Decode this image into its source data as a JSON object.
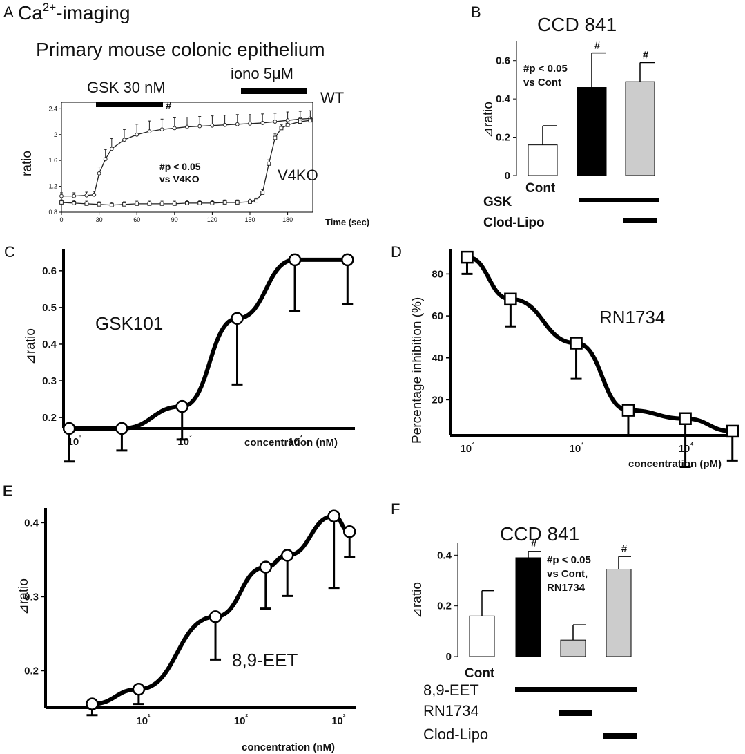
{
  "figure": {
    "panel_labels": [
      "A",
      "B",
      "C",
      "D",
      "E",
      "F"
    ]
  },
  "panelA": {
    "heading1_pre": "Ca",
    "heading1_sup": "2+",
    "heading1_post": "-imaging",
    "heading2": "Primary mouse colonic epithelium",
    "bar1_label": "GSK 30 nM",
    "bar2_label": "iono 5μM",
    "hash": "#",
    "wt_label": "WT",
    "ko_label": "V4KO",
    "stat_line1": "#p < 0.05",
    "stat_line2": "vs V4KO"
  },
  "panelB": {
    "title": "CCD 841",
    "stat_line1": "#p < 0.05",
    "stat_line2": "vs Cont",
    "cont_label": "Cont",
    "row_labels": [
      "GSK",
      "Clod-Lipo"
    ]
  },
  "panelC": {
    "label": "GSK101"
  },
  "panelD": {
    "label": "RN1734"
  },
  "panelE": {
    "label": "8,9-EET"
  },
  "panelF": {
    "title": "CCD 841",
    "stat_line1": "#p < 0.05",
    "stat_line2": "vs Cont,",
    "stat_line3": "RN1734",
    "cont_label": "Cont",
    "row_labels": [
      "8,9-EET",
      "RN1734",
      "Clod-Lipo"
    ]
  },
  "chart_data": [
    {
      "id": "A",
      "type": "line",
      "xlabel": "Time (sec)",
      "ylabel": "ratio",
      "xlim": [
        0,
        200
      ],
      "ylim": [
        0.8,
        2.5
      ],
      "xticks": [
        0,
        30,
        60,
        90,
        120,
        150,
        180
      ],
      "yticks": [
        0.8,
        1.2,
        1.6,
        2.0,
        2.4
      ],
      "ytick_labels": [
        "0.8",
        "1.2",
        "1.6",
        "2",
        "2.4"
      ],
      "series": [
        {
          "name": "WT",
          "marker": "circle",
          "x": [
            0,
            10,
            20,
            26,
            30,
            35,
            40,
            50,
            60,
            70,
            80,
            90,
            100,
            110,
            120,
            130,
            140,
            150,
            160,
            170,
            180,
            190,
            198
          ],
          "y": [
            1.05,
            1.05,
            1.06,
            1.07,
            1.4,
            1.62,
            1.78,
            1.92,
            2.0,
            2.05,
            2.08,
            2.1,
            2.12,
            2.13,
            2.14,
            2.15,
            2.16,
            2.17,
            2.18,
            2.2,
            2.22,
            2.24,
            2.25
          ],
          "err": [
            0.05,
            0.05,
            0.05,
            0.05,
            0.1,
            0.15,
            0.16,
            0.16,
            0.16,
            0.16,
            0.16,
            0.16,
            0.15,
            0.15,
            0.15,
            0.15,
            0.15,
            0.14,
            0.14,
            0.13,
            0.13,
            0.12,
            0.12
          ]
        },
        {
          "name": "V4KO",
          "marker": "square",
          "x": [
            0,
            10,
            20,
            30,
            40,
            50,
            60,
            70,
            80,
            90,
            100,
            110,
            120,
            130,
            140,
            150,
            155,
            160,
            165,
            170,
            175,
            180,
            190,
            198
          ],
          "y": [
            0.95,
            0.94,
            0.93,
            0.92,
            0.91,
            0.92,
            0.93,
            0.93,
            0.93,
            0.93,
            0.94,
            0.94,
            0.94,
            0.95,
            0.95,
            0.96,
            0.98,
            1.1,
            1.55,
            1.95,
            2.1,
            2.15,
            2.2,
            2.22
          ],
          "err": [
            0.04,
            0.04,
            0.04,
            0.04,
            0.04,
            0.04,
            0.04,
            0.04,
            0.04,
            0.04,
            0.04,
            0.04,
            0.04,
            0.04,
            0.04,
            0.04,
            0.04,
            0.05,
            0.06,
            0.06,
            0.05,
            0.05,
            0.05,
            0.05
          ]
        }
      ]
    },
    {
      "id": "B",
      "type": "bar",
      "ylabel": "⊿ratio",
      "ylim": [
        0,
        0.7
      ],
      "yticks": [
        0,
        0.2,
        0.4,
        0.6
      ],
      "ytick_labels": [
        "0",
        "0.2",
        "0.4",
        "0.6"
      ],
      "categories": [
        "Cont",
        "GSK",
        "GSK + Clod-Lipo"
      ],
      "values": [
        0.16,
        0.46,
        0.49
      ],
      "errors": [
        0.1,
        0.18,
        0.1
      ],
      "colors": [
        "#ffffff",
        "#000000",
        "#cccccc"
      ],
      "significance": [
        "",
        "#",
        "#"
      ]
    },
    {
      "id": "C",
      "type": "scatter",
      "xlabel": "concentration (nM)",
      "ylabel": "⊿ratio",
      "xscale": "log",
      "xlim": [
        8,
        3500
      ],
      "ylim": [
        0.17,
        0.66
      ],
      "xticks": [
        10,
        100,
        1000
      ],
      "xtick_labels": [
        "10¹",
        "10²",
        "10³"
      ],
      "yticks": [
        0.2,
        0.3,
        0.4,
        0.5,
        0.6
      ],
      "ytick_labels": [
        "0.2",
        "0.3",
        "0.4",
        "0.5",
        "0.6"
      ],
      "x": [
        9,
        27,
        95,
        300,
        1000,
        3000
      ],
      "y": [
        0.17,
        0.17,
        0.23,
        0.47,
        0.63,
        0.63
      ],
      "err": [
        0.09,
        0.06,
        0.09,
        0.18,
        0.14,
        0.12
      ],
      "fit_curve": "sigmoid"
    },
    {
      "id": "D",
      "type": "scatter",
      "xlabel": "concentration (pM)",
      "ylabel": "Percentage inhibition (%)",
      "xscale": "log",
      "xlim": [
        70,
        30000
      ],
      "ylim": [
        3,
        92
      ],
      "xticks": [
        100,
        1000,
        10000
      ],
      "xtick_labels": [
        "10²",
        "10³",
        "10⁴"
      ],
      "yticks": [
        20,
        40,
        60,
        80
      ],
      "ytick_labels": [
        "20",
        "40",
        "60",
        "80"
      ],
      "x": [
        100,
        250,
        1000,
        3000,
        10000,
        27000
      ],
      "y": [
        88,
        68,
        47,
        15,
        11,
        5
      ],
      "err": [
        8,
        13,
        17,
        12,
        23,
        14
      ],
      "fit_curve": "sigmoid"
    },
    {
      "id": "E",
      "type": "scatter",
      "xlabel": "concentration (nM)",
      "ylabel": "⊿ratio",
      "xscale": "log",
      "xlim": [
        1,
        1500
      ],
      "ylim": [
        0.15,
        0.42
      ],
      "xticks": [
        10,
        100,
        1000
      ],
      "xtick_labels": [
        "10¹",
        "10²",
        "10³"
      ],
      "yticks": [
        0.2,
        0.3,
        0.4
      ],
      "ytick_labels": [
        "0.2",
        "0.3",
        "0.4"
      ],
      "x": [
        3,
        9,
        55,
        180,
        300,
        900,
        1300
      ],
      "y": [
        0.155,
        0.175,
        0.273,
        0.34,
        0.356,
        0.409,
        0.388
      ],
      "err": [
        0.015,
        0.02,
        0.058,
        0.056,
        0.055,
        0.097,
        0.034
      ],
      "fit_curve": "sigmoid"
    },
    {
      "id": "F",
      "type": "bar",
      "ylabel": "⊿ratio",
      "ylim": [
        0,
        0.45
      ],
      "yticks": [
        0,
        0.2,
        0.4
      ],
      "ytick_labels": [
        "0",
        "0.2",
        "0.4"
      ],
      "categories": [
        "Cont",
        "8,9-EET",
        "8,9-EET + RN1734",
        "8,9-EET + Clod-Lipo"
      ],
      "values": [
        0.16,
        0.39,
        0.065,
        0.345
      ],
      "errors": [
        0.1,
        0.025,
        0.06,
        0.05
      ],
      "colors": [
        "#ffffff",
        "#000000",
        "#cccccc",
        "#cccccc"
      ],
      "significance": [
        "",
        "#",
        "",
        "#"
      ]
    }
  ]
}
